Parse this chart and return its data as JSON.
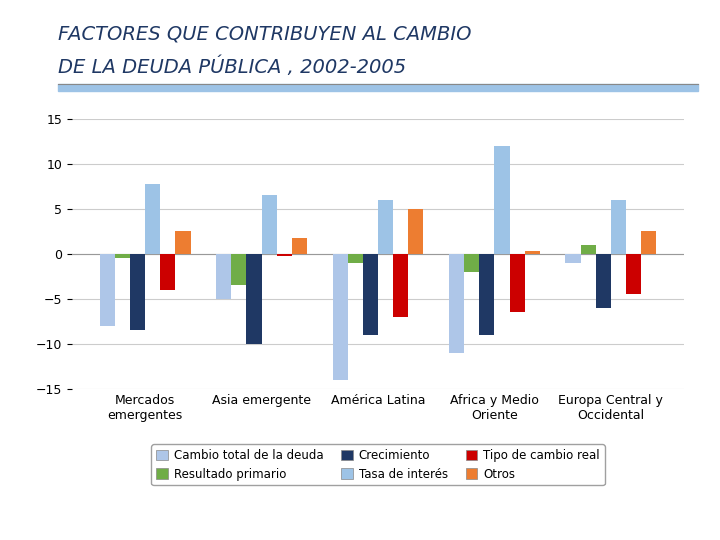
{
  "title_line1": "FACTORES QUE CONTRIBUYEN AL CAMBIO",
  "title_line2": "DE LA DEUDA PÚBLICA , 2002-2005",
  "categories": [
    "Mercados\nemergentes",
    "Asia emergente",
    "América Latina",
    "Africa y Medio\nOriente",
    "Europa Central y\nOccidental"
  ],
  "series": {
    "Cambio total de la deuda": {
      "values": [
        -8,
        -5,
        -14,
        -11,
        -1
      ],
      "color": "#aec6e8"
    },
    "Resultado primario": {
      "values": [
        -0.5,
        -3.5,
        -1,
        -2,
        1
      ],
      "color": "#70ad47"
    },
    "Crecimiento": {
      "values": [
        -8.5,
        -10,
        -9,
        -9,
        -6
      ],
      "color": "#1f3864"
    },
    "Tasa de interés": {
      "values": [
        7.7,
        6.5,
        6,
        12,
        6
      ],
      "color": "#9dc3e6"
    },
    "Tipo de cambio real": {
      "values": [
        -4,
        -0.3,
        -7,
        -6.5,
        -4.5
      ],
      "color": "#cc0000"
    },
    "Otros": {
      "values": [
        2.5,
        1.8,
        5,
        0.3,
        2.5
      ],
      "color": "#ed7d31"
    }
  },
  "ylim": [
    -15,
    15
  ],
  "yticks": [
    -15,
    -10,
    -5,
    0,
    5,
    10,
    15
  ],
  "legend_order": [
    "Cambio total de la deuda",
    "Resultado primario",
    "Crecimiento",
    "Tasa de interés",
    "Tipo de cambio real",
    "Otros"
  ],
  "background_color": "#ffffff",
  "plot_bg_color": "#ffffff",
  "title_color": "#1f3864",
  "title_fontsize": 14,
  "axis_fontsize": 9,
  "legend_fontsize": 8.5,
  "stripe_color": "#9dc3e6"
}
